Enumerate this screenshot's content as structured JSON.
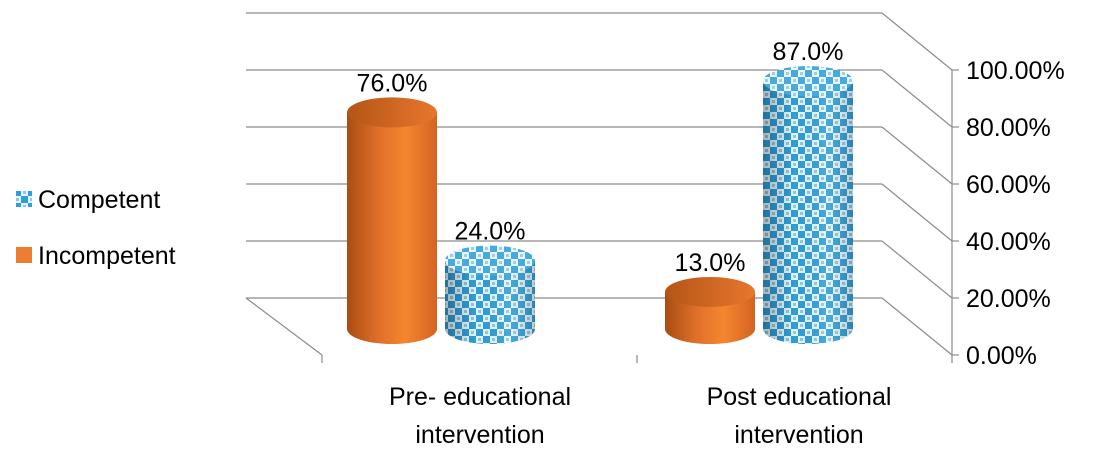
{
  "chart_data": {
    "type": "bar",
    "categories": [
      "Pre- educational intervention",
      "Post educational intervention"
    ],
    "category_lines": [
      [
        "Pre- educational",
        "intervention"
      ],
      [
        "Post educational",
        "intervention"
      ]
    ],
    "series": [
      {
        "name": "Incompetent",
        "values": [
          76.0,
          13.0
        ],
        "labels": [
          "76.0%",
          "13.0%"
        ],
        "color": "#ED7D31"
      },
      {
        "name": "Competent",
        "values": [
          24.0,
          87.0
        ],
        "labels": [
          "24.0%",
          "87.0%"
        ],
        "color": "#2E9FD8"
      }
    ],
    "legend_order": [
      "Competent",
      "Incompetent"
    ],
    "ylim": [
      0,
      100
    ],
    "yticks": [
      0,
      20,
      40,
      60,
      80,
      100
    ],
    "ytick_labels": [
      "0.00%",
      "20.00%",
      "40.00%",
      "60.00%",
      "80.00%",
      "100.00%"
    ],
    "grid": true,
    "legend_position": "left",
    "style": "3d-cylinder"
  }
}
